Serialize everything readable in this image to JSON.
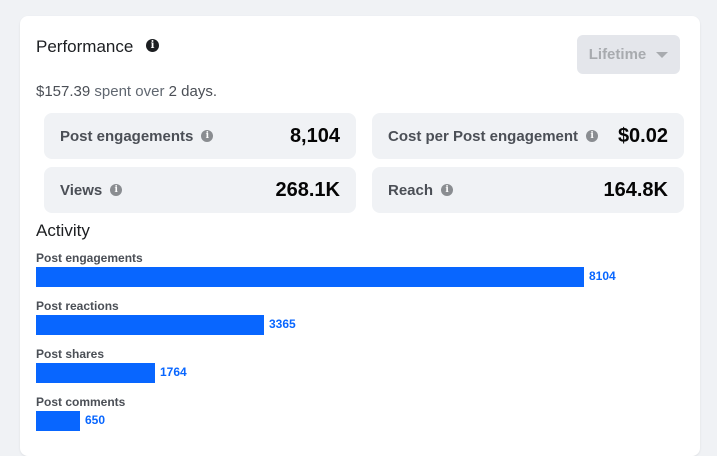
{
  "performance": {
    "title": "Performance",
    "range_label": "Lifetime",
    "spent_amount": "$157.39",
    "spent_middle": "spent over",
    "spent_days": "2 days."
  },
  "stats": [
    {
      "label": "Post engagements",
      "value": "8,104"
    },
    {
      "label": "Cost per Post engagement",
      "value": "$0.02"
    },
    {
      "label": "Views",
      "value": "268.1K"
    },
    {
      "label": "Reach",
      "value": "164.8K"
    }
  ],
  "activity": {
    "title": "Activity"
  },
  "chart_data": {
    "type": "bar",
    "orientation": "horizontal",
    "categories": [
      "Post engagements",
      "Post reactions",
      "Post shares",
      "Post comments"
    ],
    "values": [
      8104,
      3365,
      1764,
      650
    ],
    "xlim": [
      0,
      8104
    ],
    "grid": false,
    "bar_color": "#0866ff"
  },
  "colors": {
    "accent": "#0866ff",
    "tile_bg": "#f0f2f5"
  }
}
